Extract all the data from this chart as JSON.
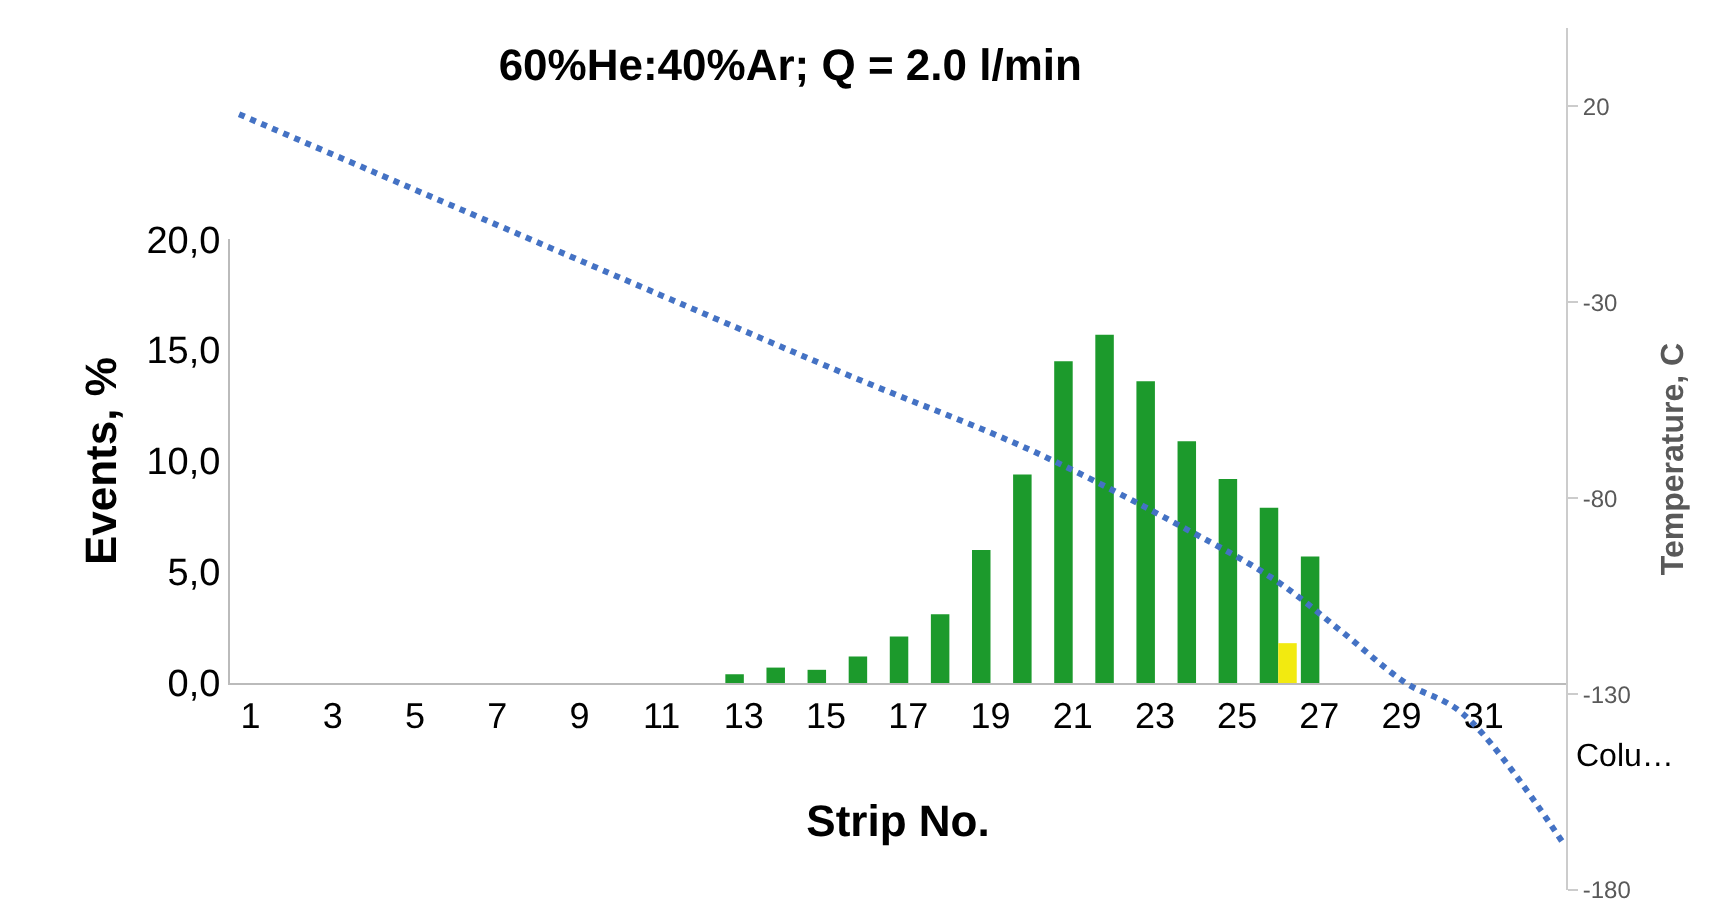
{
  "chart_data": {
    "type": "bar",
    "title": "60%He:40%Ar; Q = 2.0 l/min",
    "xlabel": "Strip No.",
    "ylabel": "Events, %",
    "y2label": "Temperature, C",
    "x": [
      1,
      2,
      3,
      4,
      5,
      6,
      7,
      8,
      9,
      10,
      11,
      12,
      13,
      14,
      15,
      16,
      17,
      18,
      19,
      20,
      21,
      22,
      23,
      24,
      25,
      26,
      27,
      28,
      29,
      30,
      31,
      32
    ],
    "series": [
      {
        "color": "#1c9a2c",
        "values": [
          0,
          0,
          0,
          0,
          0,
          0,
          0,
          0,
          0,
          0,
          0,
          0,
          0.4,
          0.7,
          0.6,
          1.2,
          2.1,
          3.1,
          6.0,
          9.4,
          14.5,
          15.7,
          13.6,
          10.9,
          9.2,
          7.9,
          5.7,
          0,
          0,
          0,
          0,
          0
        ]
      },
      {
        "color": "#f2ea10",
        "values": [
          0,
          0,
          0,
          0,
          0,
          0,
          0,
          0,
          0,
          0,
          0,
          0,
          0,
          0,
          0,
          0,
          0,
          0,
          0,
          0,
          0,
          0,
          0,
          0,
          0,
          1.8,
          0,
          0,
          0,
          0,
          0,
          0
        ]
      },
      {
        "type": "line",
        "axis": "y2",
        "color": "#4472c4",
        "line_style": "dotted",
        "x": [
          0.72,
          10.94,
          15.63,
          20.03,
          23.78,
          25.94,
          27.54,
          29.08,
          30.49,
          32.93
        ],
        "values": [
          18,
          -28,
          -49,
          -68,
          -88,
          -101,
          -114,
          -127,
          -135,
          -168
        ]
      }
    ],
    "xlim": [
      0.5,
      33
    ],
    "xticks": [
      1,
      3,
      5,
      7,
      9,
      11,
      13,
      15,
      17,
      19,
      21,
      23,
      25,
      27,
      29,
      31
    ],
    "ylim": [
      0,
      20
    ],
    "yticks": [
      {
        "value": 0,
        "label": "0,0"
      },
      {
        "value": 5,
        "label": "5,0"
      },
      {
        "value": 10,
        "label": "10,0"
      },
      {
        "value": 15,
        "label": "15,0"
      },
      {
        "value": 20,
        "label": "20,0"
      }
    ],
    "y2lim": [
      -180,
      40
    ],
    "y2ticks": [
      -180,
      -130,
      -80,
      -30,
      20
    ],
    "annotations": [
      "Colu…"
    ]
  }
}
